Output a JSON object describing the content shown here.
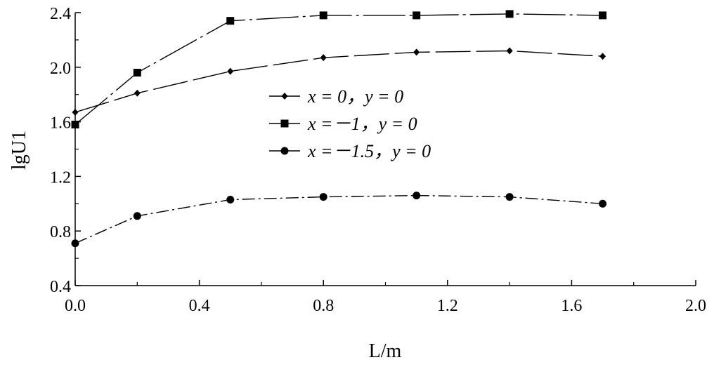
{
  "chart_data": {
    "type": "line",
    "title": "",
    "xlabel": "L/m",
    "ylabel": "lgU1",
    "xlim": [
      0.0,
      2.0
    ],
    "ylim": [
      0.4,
      2.4
    ],
    "x_ticks": [
      "0.0",
      "0.4",
      "0.8",
      "1.2",
      "1.6",
      "2.0"
    ],
    "y_ticks": [
      "0.4",
      "0.8",
      "1.2",
      "1.6",
      "2.0",
      "2.4"
    ],
    "grid": false,
    "legend_position": "center",
    "x": [
      0.0,
      0.2,
      0.5,
      0.8,
      1.1,
      1.4,
      1.7
    ],
    "series": [
      {
        "name": "x = 0，y = 0",
        "marker": "diamond",
        "line_style": "solid-dashed",
        "values": [
          1.67,
          1.81,
          1.97,
          2.07,
          2.11,
          2.12,
          2.08
        ]
      },
      {
        "name": "x =－1，y = 0",
        "marker": "square",
        "line_style": "solid-dashdot",
        "values": [
          1.58,
          1.96,
          2.34,
          2.38,
          2.38,
          2.39,
          2.38
        ]
      },
      {
        "name": "x =－1.5，y = 0",
        "marker": "circle",
        "line_style": "dashdot",
        "values": [
          0.71,
          0.91,
          1.03,
          1.05,
          1.06,
          1.05,
          1.0
        ]
      }
    ]
  }
}
